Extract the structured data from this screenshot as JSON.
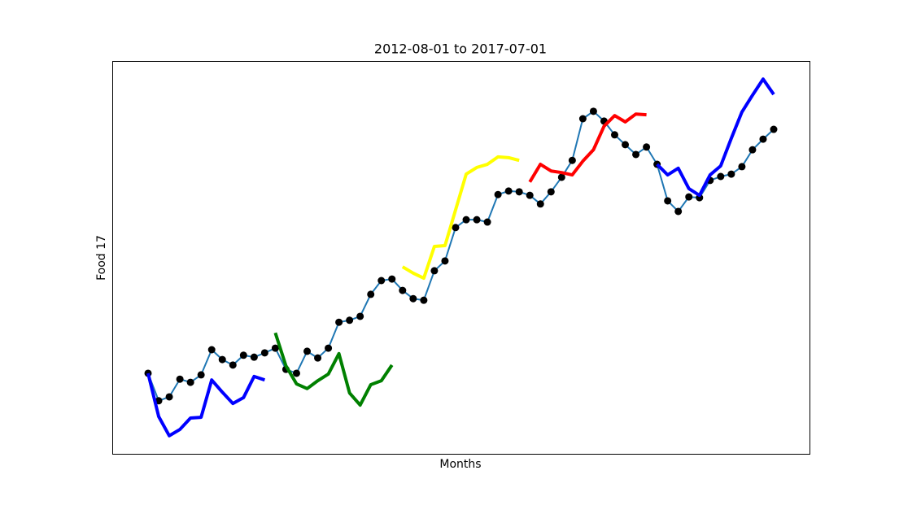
{
  "chart_data": {
    "type": "line",
    "title": "2012-08-01 to 2017-07-01",
    "x_label": "Months",
    "y_label": "Food 17",
    "categories": [
      null,
      null,
      null,
      null,
      null,
      null,
      null,
      null,
      null,
      null,
      null,
      null,
      null,
      null,
      null,
      null,
      null,
      null,
      null,
      null,
      null,
      null,
      null,
      null,
      null,
      null,
      null,
      null,
      null,
      null,
      null,
      null,
      null,
      null,
      null,
      null,
      null,
      null,
      null,
      null,
      null,
      null,
      null,
      null,
      null,
      null,
      null,
      null,
      null,
      null,
      null,
      null,
      null,
      null,
      null,
      null,
      null,
      null,
      null,
      null
    ],
    "ylim": [
      0,
      100
    ],
    "series": [
      {
        "color": "#1f77b4",
        "marker_color": "#000000",
        "values": [
          20.5,
          13.5,
          14.5,
          19.0,
          18.2,
          20.1,
          26.5,
          24.0,
          22.6,
          25.1,
          24.6,
          25.7,
          26.9,
          21.5,
          20.5,
          26.1,
          24.4,
          26.9,
          33.5,
          34.0,
          35.0,
          40.6,
          44.1,
          44.5,
          41.6,
          39.5,
          39.1,
          46.6,
          49.1,
          57.6,
          59.6,
          59.6,
          59.0,
          66.0,
          66.9,
          66.7,
          65.8,
          63.6,
          66.7,
          70.4,
          74.7,
          85.3,
          87.2,
          84.7,
          81.2,
          78.7,
          76.2,
          78.1,
          73.7,
          64.4,
          61.7,
          65.4,
          65.2,
          69.6,
          70.6,
          71.2,
          73.1,
          77.4,
          80.1,
          82.6
        ]
      },
      {
        "color": "#0000ff",
        "values": [
          20.5,
          9.5,
          4.6,
          6.2,
          9.1,
          9.3,
          18.8,
          15.7,
          12.8,
          14.3,
          19.7,
          18.8,
          null,
          null,
          null,
          null,
          null,
          null,
          null,
          null,
          null,
          null,
          null,
          null,
          null,
          null,
          null,
          null,
          null,
          null,
          null,
          null,
          null,
          null,
          null,
          null,
          null,
          null,
          null,
          null,
          null,
          null,
          null,
          null,
          null,
          null,
          null,
          null,
          null,
          null,
          null,
          null,
          null,
          null,
          null,
          null,
          null,
          null,
          null,
          null
        ]
      },
      {
        "color": "#008000",
        "values": [
          null,
          null,
          null,
          null,
          null,
          null,
          null,
          null,
          null,
          null,
          null,
          null,
          30.8,
          22.4,
          17.8,
          16.6,
          18.6,
          20.3,
          25.5,
          15.5,
          12.4,
          17.6,
          18.6,
          22.6,
          null,
          null,
          null,
          null,
          null,
          null,
          null,
          null,
          null,
          null,
          null,
          null,
          null,
          null,
          null,
          null,
          null,
          null,
          null,
          null,
          null,
          null,
          null,
          null,
          null,
          null,
          null,
          null,
          null,
          null,
          null,
          null,
          null,
          null,
          null,
          null
        ]
      },
      {
        "color": "#ffff00",
        "values": [
          null,
          null,
          null,
          null,
          null,
          null,
          null,
          null,
          null,
          null,
          null,
          null,
          null,
          null,
          null,
          null,
          null,
          null,
          null,
          null,
          null,
          null,
          null,
          null,
          47.6,
          46.0,
          44.7,
          52.8,
          53.0,
          62.1,
          71.2,
          72.9,
          73.7,
          75.6,
          75.4,
          74.7,
          null,
          null,
          null,
          null,
          null,
          null,
          null,
          null,
          null,
          null,
          null,
          null,
          null,
          null,
          null,
          null,
          null,
          null,
          null,
          null,
          null,
          null,
          null,
          null
        ]
      },
      {
        "color": "#ff0000",
        "values": [
          null,
          null,
          null,
          null,
          null,
          null,
          null,
          null,
          null,
          null,
          null,
          null,
          null,
          null,
          null,
          null,
          null,
          null,
          null,
          null,
          null,
          null,
          null,
          null,
          null,
          null,
          null,
          null,
          null,
          null,
          null,
          null,
          null,
          null,
          null,
          null,
          69.2,
          73.7,
          72.0,
          71.6,
          71.0,
          74.5,
          77.4,
          83.4,
          86.1,
          84.5,
          86.5,
          86.3,
          null,
          null,
          null,
          null,
          null,
          null,
          null,
          null,
          null,
          null,
          null,
          null
        ]
      },
      {
        "color": "#0000ff",
        "values": [
          null,
          null,
          null,
          null,
          null,
          null,
          null,
          null,
          null,
          null,
          null,
          null,
          null,
          null,
          null,
          null,
          null,
          null,
          null,
          null,
          null,
          null,
          null,
          null,
          null,
          null,
          null,
          null,
          null,
          null,
          null,
          null,
          null,
          null,
          null,
          null,
          null,
          null,
          null,
          null,
          null,
          null,
          null,
          null,
          null,
          null,
          null,
          null,
          73.7,
          71.0,
          72.7,
          67.5,
          65.8,
          71.0,
          73.3,
          80.3,
          87.0,
          91.3,
          95.4,
          91.5
        ]
      }
    ]
  }
}
